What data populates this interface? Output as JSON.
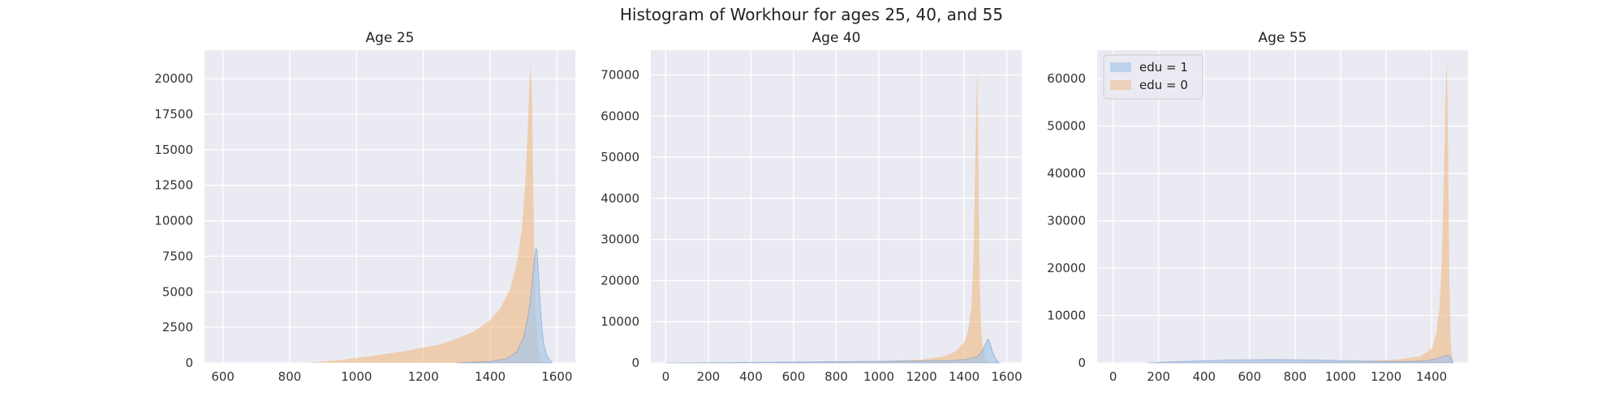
{
  "figure": {
    "title": "Histogram of Workhour for ages 25, 40, and 55"
  },
  "colors": {
    "edu1": "#4c72b0",
    "edu1_fill": "#a9c8e8",
    "edu0": "#f0b478",
    "panel_bg": "#eaeaf2",
    "grid": "#ffffff"
  },
  "legend": {
    "location": "upper-left of third panel",
    "entries": [
      "edu = 1",
      "edu = 0"
    ]
  },
  "chart_data": [
    {
      "type": "area",
      "title": "Age 25",
      "xlabel": "",
      "ylabel": "",
      "xlim": [
        545,
        1655
      ],
      "ylim": [
        0,
        22000
      ],
      "xticks": [
        600,
        800,
        1000,
        1200,
        1400,
        1600
      ],
      "yticks": [
        0,
        2500,
        5000,
        7500,
        10000,
        12500,
        15000,
        17500,
        20000
      ],
      "grid": true,
      "series": [
        {
          "name": "edu = 0",
          "x": [
            850,
            950,
            1050,
            1150,
            1250,
            1300,
            1350,
            1400,
            1430,
            1460,
            1480,
            1495,
            1505,
            1512,
            1517,
            1521,
            1525,
            1528,
            1532,
            1536,
            1540,
            1545,
            1552,
            1560
          ],
          "y": [
            0,
            200,
            500,
            850,
            1300,
            1700,
            2200,
            3000,
            3800,
            5200,
            7000,
            9500,
            12500,
            16000,
            19500,
            20900,
            19000,
            14000,
            8000,
            4000,
            2000,
            800,
            200,
            0
          ]
        },
        {
          "name": "edu = 1",
          "x": [
            1300,
            1400,
            1450,
            1480,
            1500,
            1515,
            1525,
            1532,
            1537,
            1541,
            1545,
            1550,
            1555,
            1560,
            1570,
            1585
          ],
          "y": [
            0,
            100,
            300,
            800,
            1800,
            3500,
            5500,
            7200,
            8100,
            7800,
            6200,
            4000,
            2500,
            1400,
            500,
            0
          ]
        }
      ]
    },
    {
      "type": "area",
      "title": "Age 40",
      "xlabel": "",
      "ylabel": "",
      "xlim": [
        -70,
        1670
      ],
      "ylim": [
        0,
        76000
      ],
      "xticks": [
        0,
        200,
        400,
        600,
        800,
        1000,
        1200,
        1400,
        1600
      ],
      "yticks": [
        0,
        10000,
        20000,
        30000,
        40000,
        50000,
        60000,
        70000
      ],
      "grid": true,
      "series": [
        {
          "name": "edu = 0",
          "x": [
            600,
            1000,
            1200,
            1300,
            1360,
            1400,
            1420,
            1435,
            1445,
            1452,
            1457,
            1461,
            1465,
            1469,
            1474,
            1480,
            1490,
            1500,
            1520
          ],
          "y": [
            0,
            300,
            800,
            1500,
            2800,
            5000,
            8000,
            14000,
            28000,
            48000,
            62000,
            71500,
            60000,
            38000,
            18000,
            8000,
            3000,
            1000,
            0
          ]
        },
        {
          "name": "edu = 1",
          "x": [
            0,
            300,
            600,
            800,
            1000,
            1200,
            1350,
            1420,
            1460,
            1480,
            1495,
            1505,
            1512,
            1518,
            1525,
            1535,
            1550,
            1565
          ],
          "y": [
            0,
            100,
            200,
            300,
            400,
            500,
            600,
            900,
            1500,
            2500,
            4000,
            5200,
            5800,
            5500,
            4200,
            2500,
            800,
            0
          ]
        }
      ]
    },
    {
      "type": "area",
      "title": "Age 55",
      "xlabel": "",
      "ylabel": "",
      "xlim": [
        -70,
        1560
      ],
      "ylim": [
        0,
        66000
      ],
      "xticks": [
        0,
        200,
        400,
        600,
        800,
        1000,
        1200,
        1400
      ],
      "yticks": [
        0,
        10000,
        20000,
        30000,
        40000,
        50000,
        60000
      ],
      "grid": true,
      "series": [
        {
          "name": "edu = 0",
          "x": [
            300,
            800,
            1100,
            1250,
            1350,
            1400,
            1420,
            1435,
            1445,
            1452,
            1458,
            1462,
            1466,
            1470,
            1474,
            1478,
            1484,
            1492
          ],
          "y": [
            0,
            200,
            400,
            700,
            1400,
            3000,
            6000,
            12000,
            22000,
            35000,
            48000,
            58000,
            64000,
            56000,
            38000,
            18000,
            4000,
            0
          ]
        },
        {
          "name": "edu = 1",
          "x": [
            150,
            300,
            500,
            700,
            900,
            1000,
            1100,
            1200,
            1300,
            1380,
            1420,
            1450,
            1470,
            1485,
            1495
          ],
          "y": [
            0,
            300,
            600,
            700,
            600,
            500,
            400,
            300,
            300,
            500,
            900,
            1300,
            1700,
            1200,
            0
          ]
        }
      ]
    }
  ]
}
